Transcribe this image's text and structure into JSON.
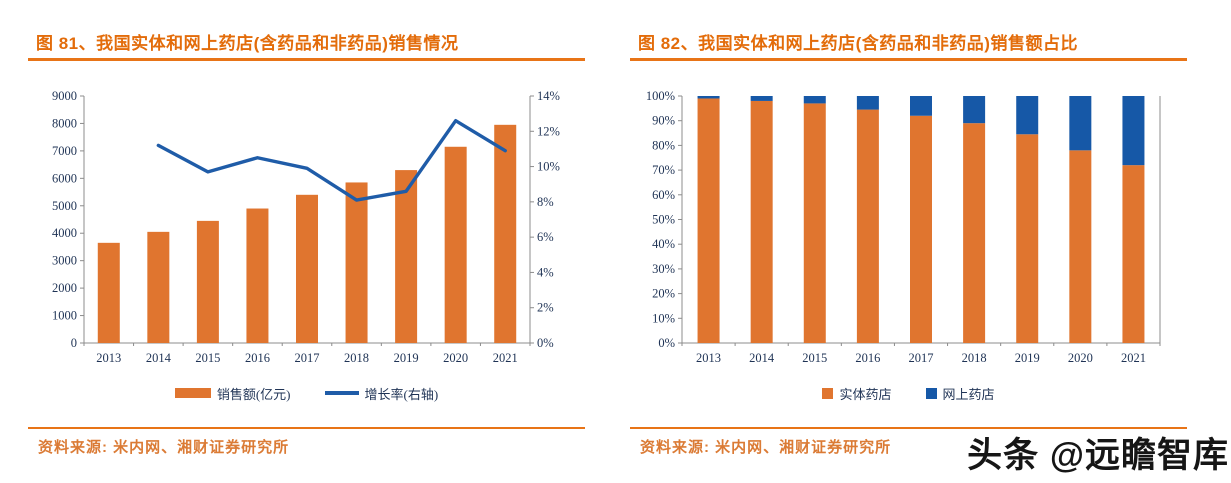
{
  "watermark": {
    "text": "头条 @远瞻智库"
  },
  "chart_data": [
    {
      "type": "combo",
      "title": "图 81、我国实体和网上药店(含药品和非药品)销售情况",
      "source": "资料来源: 米内网、湘财证券研究所",
      "categories": [
        "2013",
        "2014",
        "2015",
        "2016",
        "2017",
        "2018",
        "2019",
        "2020",
        "2021"
      ],
      "bar_series": {
        "name": "销售额(亿元)",
        "color": "#E0752F",
        "values": [
          3650,
          4050,
          4450,
          4900,
          5400,
          5850,
          6300,
          7150,
          7950
        ]
      },
      "line_series": {
        "name": "增长率(右轴)",
        "color": "#1F5CA8",
        "values": [
          null,
          11.2,
          9.7,
          10.5,
          9.9,
          8.1,
          8.6,
          12.6,
          10.9
        ]
      },
      "y_left": {
        "min": 0,
        "max": 9000,
        "step": 1000,
        "suffix": ""
      },
      "y_right": {
        "min": 0,
        "max": 14,
        "step": 2,
        "suffix": "%"
      },
      "grid": false,
      "legend_position": "bottom"
    },
    {
      "type": "stacked_bar_100",
      "title": "图 82、我国实体和网上药店(含药品和非药品)销售额占比",
      "source": "资料来源: 米内网、湘财证券研究所",
      "categories": [
        "2013",
        "2014",
        "2015",
        "2016",
        "2017",
        "2018",
        "2019",
        "2020",
        "2021"
      ],
      "series": [
        {
          "name": "实体药店",
          "color": "#E0752F",
          "values": [
            99,
            98,
            97,
            94.5,
            92,
            89,
            84.5,
            78,
            72
          ]
        },
        {
          "name": "网上药店",
          "color": "#1658A7",
          "values": [
            1,
            2,
            3,
            5.5,
            8,
            11,
            15.5,
            22,
            28
          ]
        }
      ],
      "y": {
        "min": 0,
        "max": 100,
        "step": 10,
        "suffix": "%"
      },
      "grid": false,
      "legend_position": "bottom"
    }
  ]
}
